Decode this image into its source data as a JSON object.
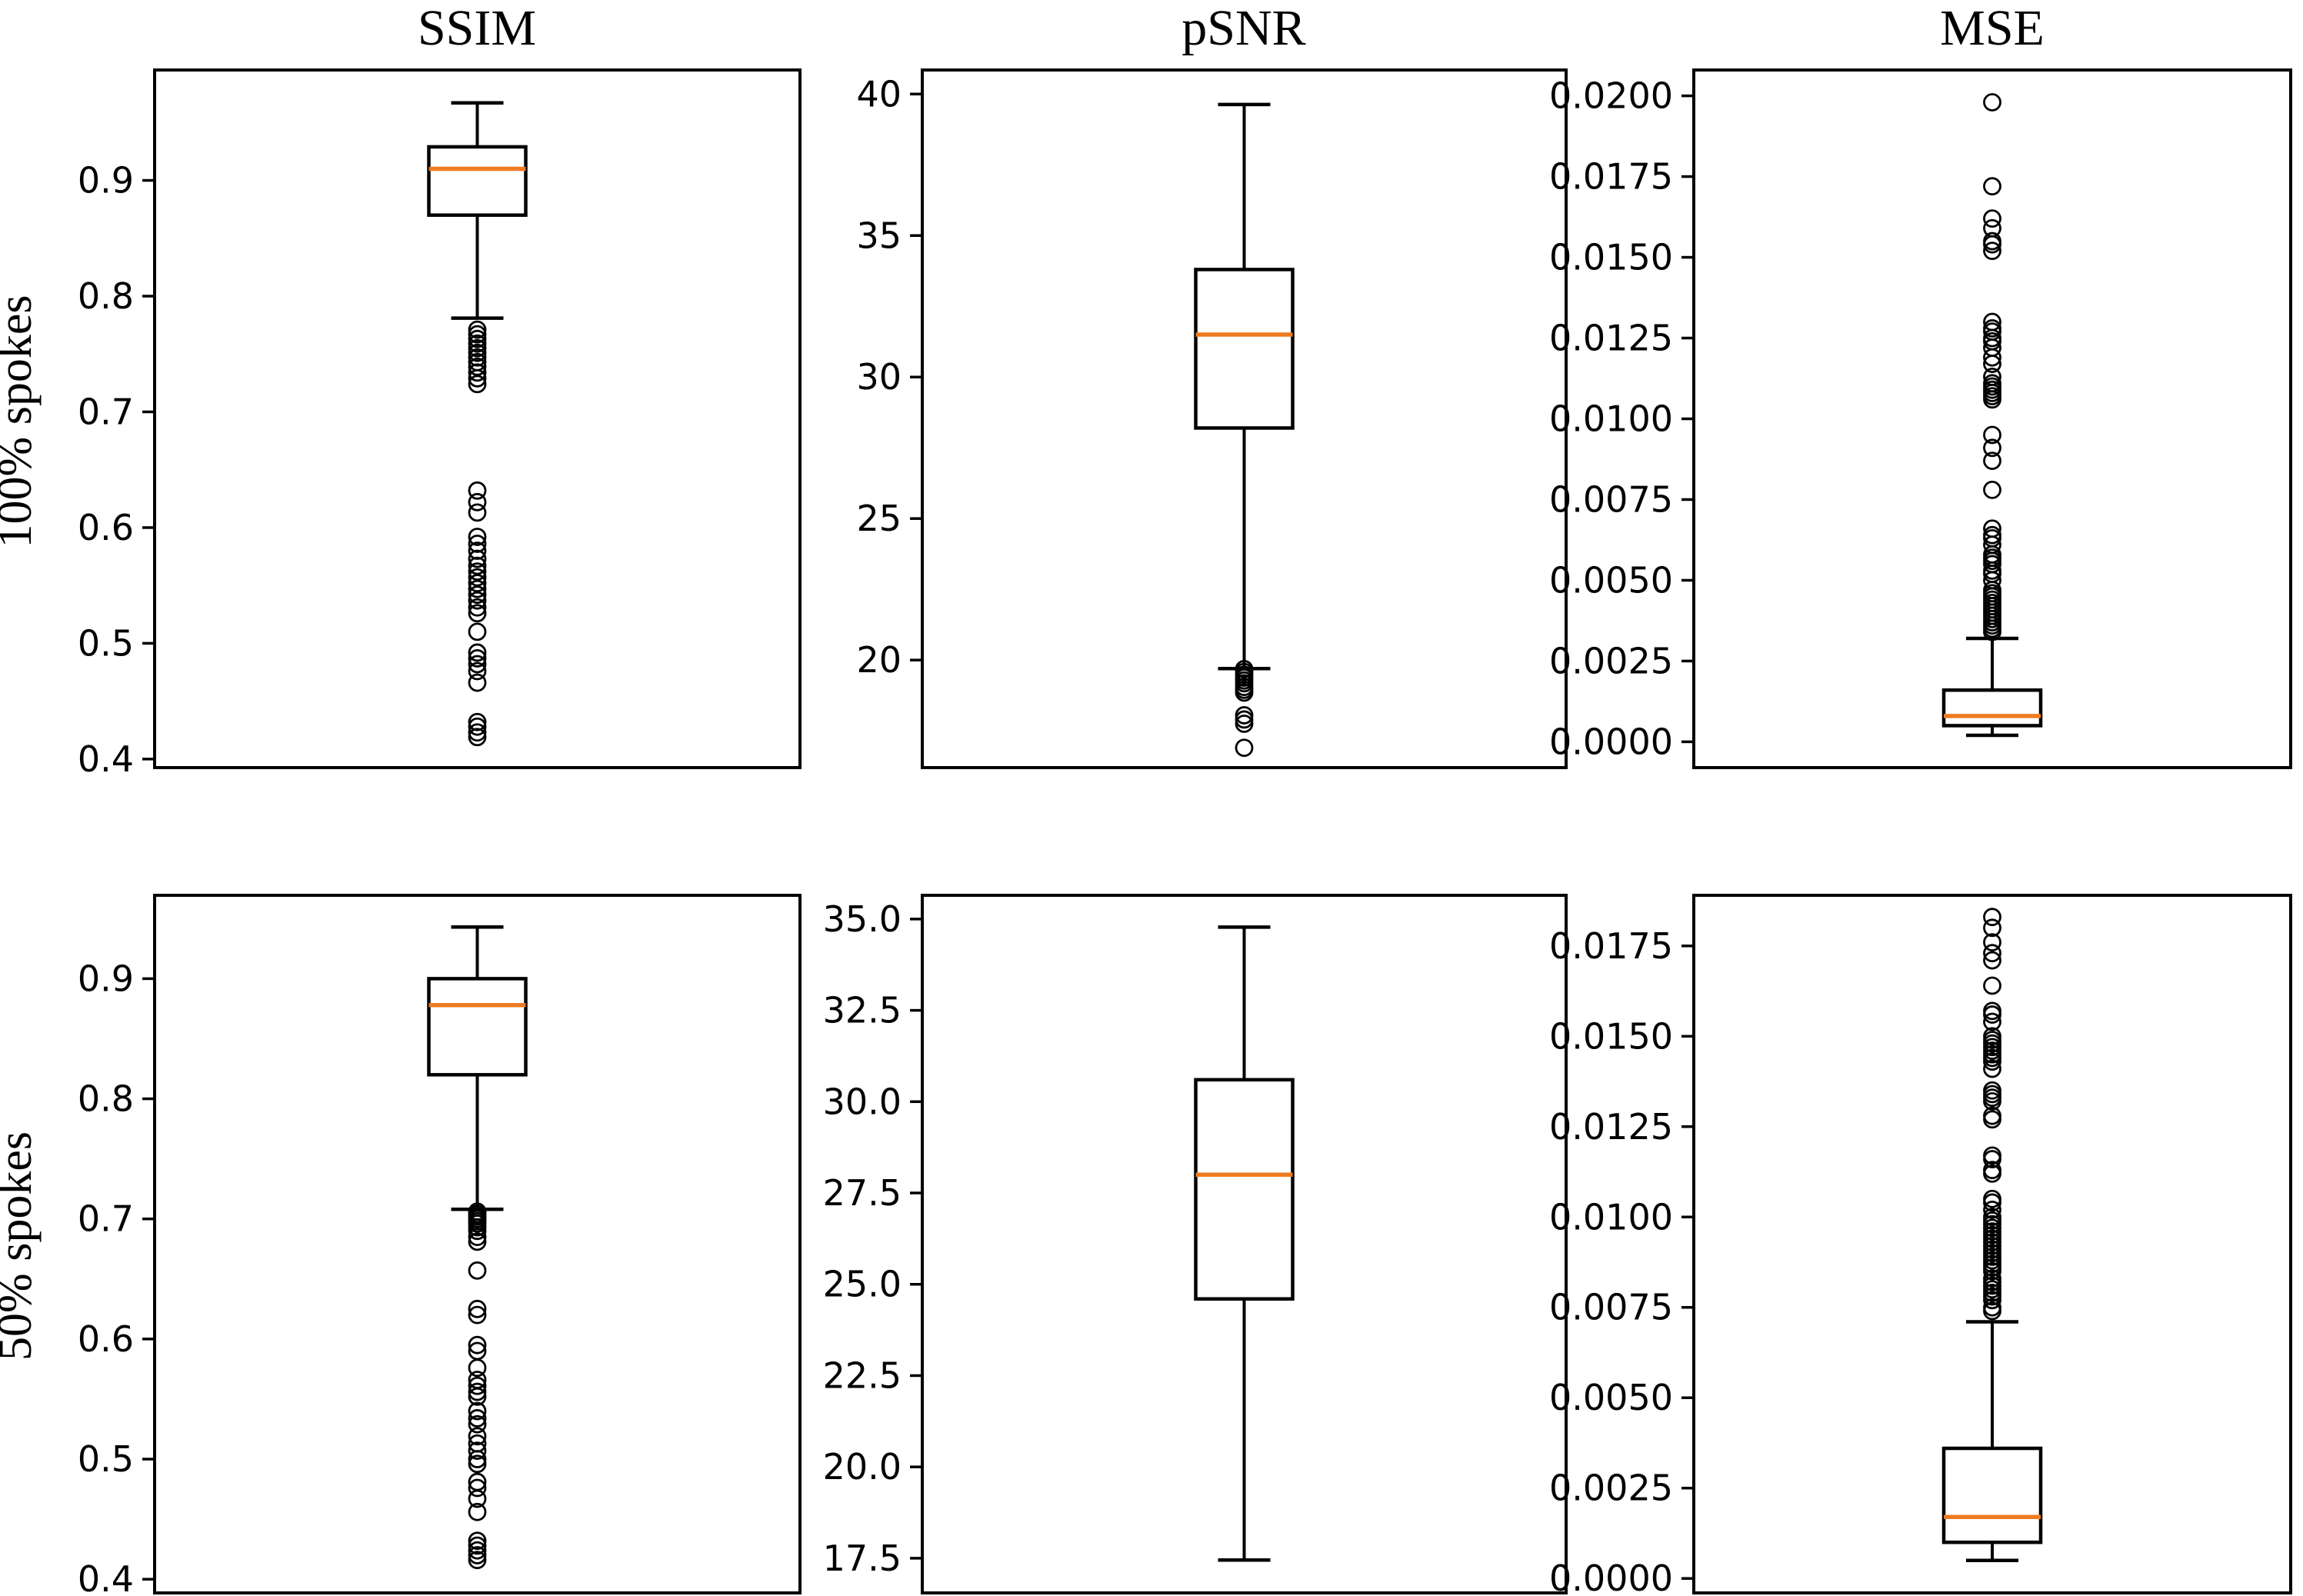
{
  "figure": {
    "background": "#ffffff",
    "line_color": "#000000",
    "median_color": "#ee7b20",
    "col_titles": [
      "SSIM",
      "pSNR",
      "MSE"
    ],
    "row_labels": [
      "100% spokes",
      "50% spokes"
    ]
  },
  "chart_data": [
    {
      "type": "box",
      "row": "100% spokes",
      "col": "SSIM",
      "ylim": [
        0.3926,
        0.9954
      ],
      "yticks": [
        0.4,
        0.5,
        0.6,
        0.7,
        0.8,
        0.9
      ],
      "tick_decimals": 1,
      "stats": {
        "whisker_low": 0.781,
        "q1": 0.87,
        "median": 0.91,
        "q3": 0.929,
        "whisker_high": 0.967
      },
      "outliers": [
        0.771,
        0.767,
        0.763,
        0.759,
        0.755,
        0.751,
        0.747,
        0.743,
        0.739,
        0.734,
        0.729,
        0.724,
        0.632,
        0.622,
        0.613,
        0.592,
        0.586,
        0.58,
        0.573,
        0.567,
        0.562,
        0.557,
        0.552,
        0.547,
        0.542,
        0.537,
        0.531,
        0.526,
        0.51,
        0.492,
        0.487,
        0.482,
        0.476,
        0.466,
        0.432,
        0.428,
        0.423,
        0.419
      ]
    },
    {
      "type": "box",
      "row": "100% spokes",
      "col": "pSNR",
      "ylim": [
        16.2,
        40.85
      ],
      "yticks": [
        20,
        25,
        30,
        35,
        40
      ],
      "tick_decimals": 0,
      "stats": {
        "whisker_low": 19.7,
        "q1": 28.2,
        "median": 31.5,
        "q3": 33.8,
        "whisker_high": 39.63
      },
      "outliers": [
        19.68,
        19.58,
        19.48,
        19.38,
        19.28,
        19.18,
        19.05,
        18.95,
        18.85,
        18.05,
        17.9,
        17.75,
        16.9
      ]
    },
    {
      "type": "box",
      "row": "100% spokes",
      "col": "MSE",
      "ylim": [
        -0.0008,
        0.0208
      ],
      "yticks": [
        0.0,
        0.0025,
        0.005,
        0.0075,
        0.01,
        0.0125,
        0.015,
        0.0175,
        0.02
      ],
      "tick_decimals": 4,
      "stats": {
        "whisker_low": 0.0002,
        "q1": 0.0005,
        "median": 0.0008,
        "q3": 0.0016,
        "whisker_high": 0.0032
      },
      "outliers": [
        0.0198,
        0.0172,
        0.0162,
        0.0159,
        0.0155,
        0.0154,
        0.0152,
        0.013,
        0.0128,
        0.0127,
        0.0125,
        0.0124,
        0.0122,
        0.0119,
        0.0117,
        0.0113,
        0.0111,
        0.011,
        0.0109,
        0.0108,
        0.0107,
        0.0106,
        0.0095,
        0.0091,
        0.0087,
        0.0078,
        0.0066,
        0.0064,
        0.0063,
        0.0061,
        0.0058,
        0.0057,
        0.0056,
        0.0055,
        0.0053,
        0.0052,
        0.005,
        0.0047,
        0.0046,
        0.0045,
        0.0044,
        0.0043,
        0.0042,
        0.0041,
        0.004,
        0.0039,
        0.0038,
        0.0037,
        0.0036,
        0.0035,
        0.0034
      ]
    },
    {
      "type": "box",
      "row": "50% spokes",
      "col": "SSIM",
      "ylim": [
        0.3886,
        0.9694
      ],
      "yticks": [
        0.4,
        0.5,
        0.6,
        0.7,
        0.8,
        0.9
      ],
      "tick_decimals": 1,
      "stats": {
        "whisker_low": 0.708,
        "q1": 0.82,
        "median": 0.878,
        "q3": 0.9,
        "whisker_high": 0.943
      },
      "outliers": [
        0.706,
        0.704,
        0.702,
        0.7,
        0.698,
        0.696,
        0.693,
        0.69,
        0.685,
        0.681,
        0.657,
        0.625,
        0.62,
        0.595,
        0.59,
        0.576,
        0.566,
        0.561,
        0.556,
        0.552,
        0.54,
        0.534,
        0.529,
        0.519,
        0.513,
        0.507,
        0.5,
        0.496,
        0.481,
        0.476,
        0.467,
        0.456,
        0.432,
        0.428,
        0.424,
        0.42,
        0.416
      ]
    },
    {
      "type": "box",
      "row": "50% spokes",
      "col": "pSNR",
      "ylim": [
        16.55,
        35.65
      ],
      "yticks": [
        17.5,
        20.0,
        22.5,
        25.0,
        27.5,
        30.0,
        32.5,
        35.0
      ],
      "tick_decimals": 1,
      "stats": {
        "whisker_low": 17.45,
        "q1": 24.6,
        "median": 28.0,
        "q3": 30.6,
        "whisker_high": 34.78
      },
      "outliers": []
    },
    {
      "type": "box",
      "row": "50% spokes",
      "col": "MSE",
      "ylim": [
        -0.0004,
        0.0189
      ],
      "yticks": [
        0.0,
        0.0025,
        0.005,
        0.0075,
        0.01,
        0.0125,
        0.015,
        0.0175
      ],
      "tick_decimals": 4,
      "stats": {
        "whisker_low": 0.0005,
        "q1": 0.001,
        "median": 0.0017,
        "q3": 0.0036,
        "whisker_high": 0.0071
      },
      "outliers": [
        0.0183,
        0.018,
        0.0176,
        0.0173,
        0.0171,
        0.0164,
        0.0157,
        0.0156,
        0.0154,
        0.015,
        0.0149,
        0.0148,
        0.0147,
        0.0146,
        0.0145,
        0.0144,
        0.0143,
        0.0141,
        0.0135,
        0.0134,
        0.0133,
        0.0132,
        0.0128,
        0.0127,
        0.0117,
        0.0116,
        0.0113,
        0.0112,
        0.0105,
        0.0104,
        0.0102,
        0.01,
        0.0099,
        0.0098,
        0.0097,
        0.0096,
        0.0095,
        0.0094,
        0.0093,
        0.0092,
        0.0091,
        0.009,
        0.0089,
        0.0088,
        0.0087,
        0.0086,
        0.0085,
        0.0083,
        0.0082,
        0.0081,
        0.008,
        0.0079,
        0.0078,
        0.0077,
        0.0075,
        0.0074
      ]
    }
  ]
}
